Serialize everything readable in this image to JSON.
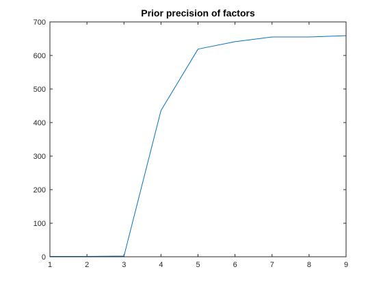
{
  "chart_data": {
    "type": "line",
    "title": "Prior precision of factors",
    "xlabel": "",
    "ylabel": "",
    "xlim": [
      1,
      9
    ],
    "ylim": [
      0,
      700
    ],
    "xticks": [
      1,
      2,
      3,
      4,
      5,
      6,
      7,
      8,
      9
    ],
    "yticks": [
      0,
      100,
      200,
      300,
      400,
      500,
      600,
      700
    ],
    "grid": false,
    "series": [
      {
        "x": [
          1,
          2,
          3,
          4,
          5,
          6,
          7,
          8,
          9
        ],
        "y": [
          1,
          1,
          2,
          436,
          619,
          641,
          655,
          655,
          659
        ],
        "color": "#0072BD"
      }
    ]
  }
}
